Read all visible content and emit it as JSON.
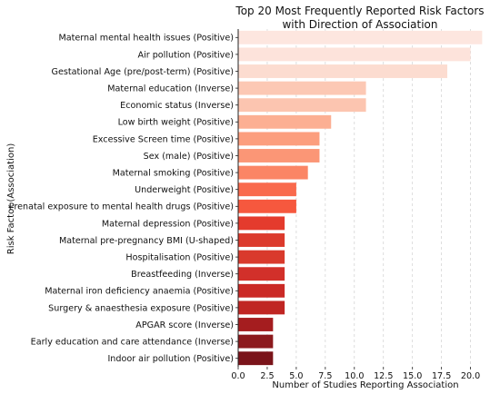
{
  "chart_data": {
    "type": "bar",
    "orientation": "horizontal",
    "title_lines": [
      "Top 20 Most Frequently Reported Risk Factors",
      "with Direction of Association"
    ],
    "xlabel": "Number of Studies Reporting Association",
    "ylabel": "Risk Factor (Association)",
    "xlim": [
      0,
      22
    ],
    "xticks": [
      "0.0",
      "2.5",
      "5.0",
      "7.5",
      "10.0",
      "12.5",
      "15.0",
      "17.5",
      "20.0"
    ],
    "xtick_values": [
      0,
      2.5,
      5,
      7.5,
      10,
      12.5,
      15,
      17.5,
      20
    ],
    "grid": "vertical",
    "categories": [
      "Maternal mental health issues (Positive)",
      "Air pollution (Positive)",
      "Gestational Age (pre/post-term) (Positive)",
      "Maternal education (Inverse)",
      "Economic status (Inverse)",
      "Low birth weight (Positive)",
      "Excessive Screen time (Positive)",
      "Sex (male) (Positive)",
      "Maternal smoking (Positive)",
      "Underweight (Positive)",
      "Prenatal exposure to mental health drugs (Positive)",
      "Maternal depression (Positive)",
      "Maternal pre-pregnancy BMI (U-shaped)",
      "Hospitalisation (Positive)",
      "Breastfeeding (Inverse)",
      "Maternal iron deficiency anaemia (Positive)",
      "Surgery & anaesthesia exposure (Positive)",
      "APGAR score (Inverse)",
      "Early education and care attendance (Inverse)",
      "Indoor air pollution (Positive)"
    ],
    "values": [
      21,
      20,
      18,
      11,
      11,
      8,
      7,
      7,
      6,
      5,
      5,
      4,
      4,
      4,
      4,
      4,
      4,
      3,
      3,
      3
    ],
    "colors": [
      "#fde6df",
      "#fde3db",
      "#fcdcd0",
      "#fcc8b4",
      "#fcc5b0",
      "#fcaf93",
      "#fc9e7e",
      "#fb9676",
      "#fb8565",
      "#f96a4d",
      "#f6583e",
      "#e43b2d",
      "#dc3a2c",
      "#d93a2c",
      "#d2302a",
      "#cb2a26",
      "#c02623",
      "#a51d1f",
      "#8c1a1d",
      "#7a141a"
    ]
  }
}
